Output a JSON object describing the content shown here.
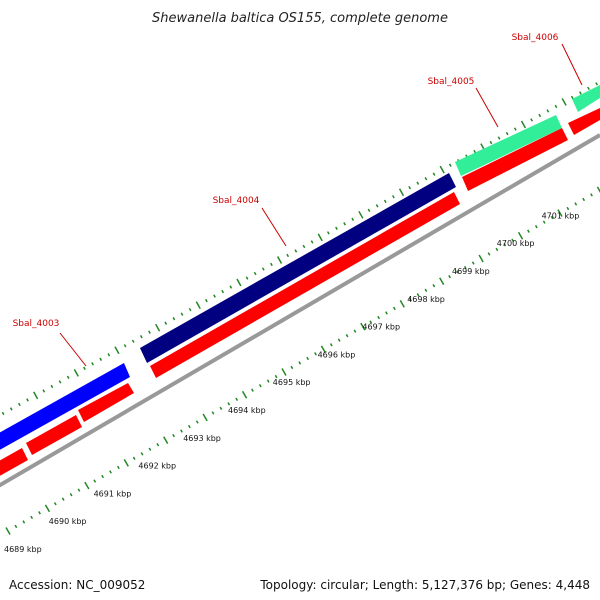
{
  "title": "Shewanella baltica OS155, complete genome",
  "accession": "Accession: NC_009052",
  "summary": "Topology: circular; Length: 5,127,376 bp; Genes: 4,448",
  "kbp_labels": [
    "4689 kbp",
    "4690 kbp",
    "4691 kbp",
    "4692 kbp",
    "4693 kbp",
    "4694 kbp",
    "4695 kbp",
    "4696 kbp",
    "4697 kbp",
    "4698 kbp",
    "4699 kbp",
    "4700 kbp",
    "4701 kbp"
  ],
  "genes": [
    {
      "name": "Sbal_4003",
      "color": "#0000ff"
    },
    {
      "name": "Sbal_4004",
      "color": "#000080"
    },
    {
      "name": "Sbal_4005",
      "color": "#33ee99"
    },
    {
      "name": "Sbal_4006",
      "color": "#33ee99"
    }
  ],
  "colors": {
    "cds": "#ff0000",
    "backbone": "#999999",
    "ticks": "#228822",
    "gene_label": "#cc0000"
  }
}
